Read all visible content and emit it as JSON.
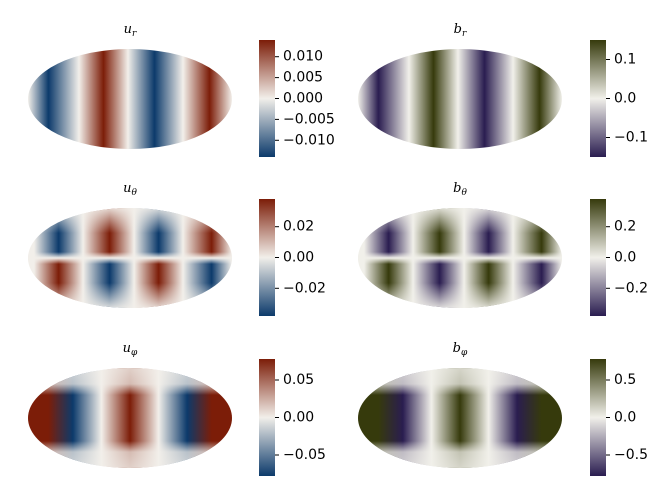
{
  "chart_data": [
    {
      "type": "map",
      "title": "u",
      "subscript": "r",
      "colormap": [
        "#0c3a6b",
        "#f2efea",
        "#7c1d08"
      ],
      "ylim": [
        -0.014,
        0.014
      ],
      "yticks": [
        {
          "value": 0.01,
          "label": "0.010"
        },
        {
          "value": 0.005,
          "label": "0.005"
        },
        {
          "value": 0,
          "label": "0.000"
        },
        {
          "value": -0.005,
          "label": "−0.005"
        },
        {
          "value": -0.01,
          "label": "−0.010"
        }
      ]
    },
    {
      "type": "map",
      "title": "b",
      "subscript": "r",
      "colormap": [
        "#2a1d50",
        "#f1f0ea",
        "#363a0c"
      ],
      "ylim": [
        -0.15,
        0.15
      ],
      "yticks": [
        0.1,
        {
          "value": 0,
          "label": "0.0"
        },
        {
          "value": -0.1,
          "label": "−0.1"
        }
      ]
    },
    {
      "type": "map",
      "title": "u",
      "subscript": "θ",
      "colormap": [
        "#0c3a6b",
        "#f2efea",
        "#7c1d08"
      ],
      "ylim": [
        -0.038,
        0.038
      ],
      "yticks": [
        0.02,
        {
          "value": 0,
          "label": "0.00"
        },
        {
          "value": -0.02,
          "label": "−0.02"
        }
      ]
    },
    {
      "type": "map",
      "title": "b",
      "subscript": "θ",
      "colormap": [
        "#2a1d50",
        "#f1f0ea",
        "#363a0c"
      ],
      "ylim": [
        -0.38,
        0.38
      ],
      "yticks": [
        0.2,
        {
          "value": 0,
          "label": "0.0"
        },
        {
          "value": -0.2,
          "label": "−0.2"
        }
      ]
    },
    {
      "type": "map",
      "title": "u",
      "subscript": "φ",
      "colormap": [
        "#0c3a6b",
        "#f2efea",
        "#7c1d08"
      ],
      "ylim": [
        -0.078,
        0.078
      ],
      "yticks": [
        {
          "value": 0.05,
          "label": "0.05"
        },
        {
          "value": 0,
          "label": "0.00"
        },
        {
          "value": -0.05,
          "label": "−0.05"
        }
      ]
    },
    {
      "type": "map",
      "title": "b",
      "subscript": "φ",
      "colormap": [
        "#2a1d50",
        "#f1f0ea",
        "#363a0c"
      ],
      "ylim": [
        -0.78,
        0.78
      ],
      "yticks": [
        0.5,
        {
          "value": 0,
          "label": "0.0"
        },
        {
          "value": -0.5,
          "label": "−0.5"
        }
      ]
    }
  ]
}
